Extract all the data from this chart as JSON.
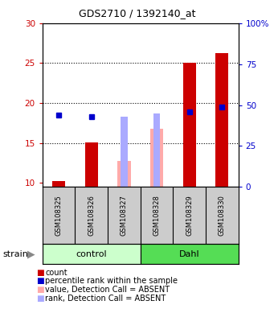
{
  "title": "GDS2710 / 1392140_at",
  "samples": [
    "GSM108325",
    "GSM108326",
    "GSM108327",
    "GSM108328",
    "GSM108329",
    "GSM108330"
  ],
  "groups": [
    "control",
    "control",
    "control",
    "Dahl",
    "Dahl",
    "Dahl"
  ],
  "group_colors": {
    "control": "#ccffcc",
    "Dahl": "#55dd55"
  },
  "ylim_left": [
    9.5,
    30
  ],
  "ylim_right": [
    0,
    100
  ],
  "yticks_left": [
    10,
    15,
    20,
    25,
    30
  ],
  "yticks_right": [
    0,
    25,
    50,
    75,
    100
  ],
  "ytick_labels_right": [
    "0",
    "25",
    "50",
    "75",
    "100%"
  ],
  "dotted_lines": [
    15,
    20,
    25
  ],
  "count_color": "#cc0000",
  "rank_color": "#0000cc",
  "absent_value_color": "#ffaaaa",
  "absent_rank_color": "#aaaaff",
  "counts": [
    10.2,
    15.1,
    null,
    null,
    25.0,
    26.3
  ],
  "ranks": [
    44,
    43,
    null,
    null,
    46,
    49
  ],
  "absent_values": [
    null,
    null,
    12.8,
    16.8,
    null,
    null
  ],
  "absent_ranks": [
    null,
    null,
    43,
    45,
    null,
    null
  ],
  "legend_items": [
    {
      "color": "#cc0000",
      "label": "count"
    },
    {
      "color": "#0000cc",
      "label": "percentile rank within the sample"
    },
    {
      "color": "#ffaaaa",
      "label": "value, Detection Call = ABSENT"
    },
    {
      "color": "#aaaaff",
      "label": "rank, Detection Call = ABSENT"
    }
  ],
  "ylabel_left_color": "#cc0000",
  "ylabel_right_color": "#0000cc",
  "background_color": "#ffffff",
  "sample_box_color": "#cccccc",
  "strain_label": "strain",
  "bar_width": 0.4,
  "narrow_bar_width": 0.2
}
